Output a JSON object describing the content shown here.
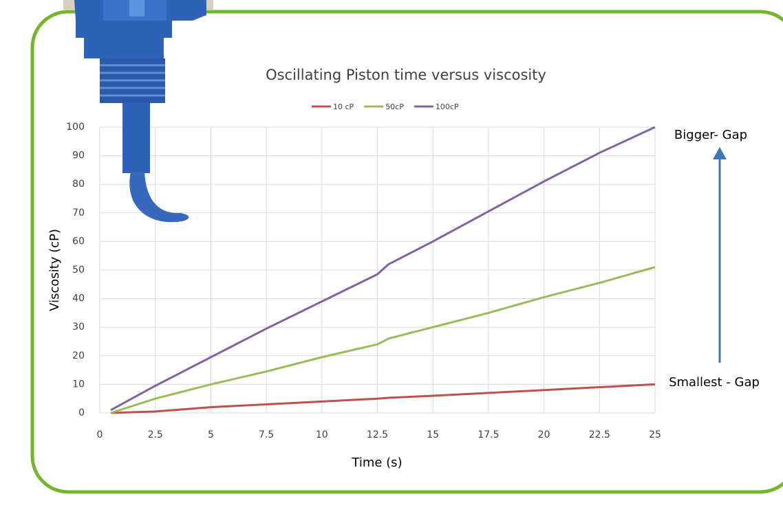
{
  "chart_data": {
    "type": "line",
    "title": "Oscillating Piston time versus viscosity",
    "x_label": "Time (s)",
    "y_label": "Viscosity (cP)",
    "annotations": [
      "Bigger- Gap",
      "Smallest - Gap"
    ],
    "x": [
      0.5,
      2.5,
      5,
      7.5,
      10,
      12.5,
      13,
      15,
      17.5,
      20,
      22.5,
      25
    ],
    "series": [
      {
        "name": "10 cP",
        "color": "#c0504d",
        "values": [
          0,
          0.5,
          2,
          3,
          4,
          5,
          5.3,
          6,
          7,
          8,
          9,
          10
        ]
      },
      {
        "name": "50cP",
        "color": "#9bbb59",
        "values": [
          0,
          5,
          10,
          14.5,
          19.5,
          24,
          26,
          30,
          35,
          40.5,
          45.5,
          51
        ]
      },
      {
        "name": "100cP",
        "color": "#8064a2",
        "values": [
          1,
          9.5,
          19.5,
          29.5,
          39,
          48.5,
          52,
          60,
          70.5,
          81,
          91,
          100
        ]
      }
    ],
    "xlim": [
      0,
      25
    ],
    "xticks": [
      0,
      2.5,
      5,
      7.5,
      10,
      12.5,
      15,
      17.5,
      20,
      22.5,
      25
    ],
    "ylim": [
      0,
      100
    ],
    "yticks": [
      0,
      10,
      20,
      30,
      40,
      50,
      60,
      70,
      80,
      90,
      100
    ],
    "grid": true
  }
}
